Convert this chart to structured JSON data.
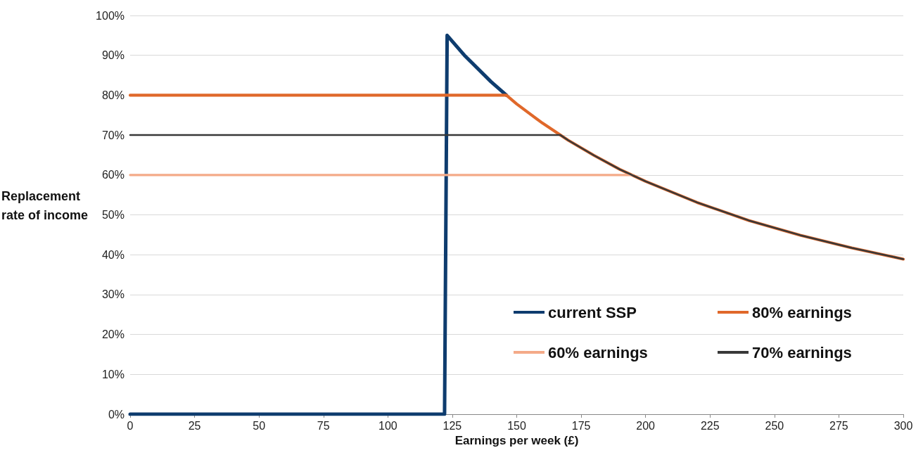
{
  "chart_data": {
    "type": "line",
    "xlabel": "Earnings per week (£)",
    "ylabel": "Replacement rate of income",
    "xlim": [
      0,
      300
    ],
    "xticks": [
      0,
      25,
      50,
      75,
      100,
      125,
      150,
      175,
      200,
      225,
      250,
      275,
      300
    ],
    "ylim": [
      0,
      100
    ],
    "yticks": [
      {
        "value": 0,
        "label": "0%"
      },
      {
        "value": 10,
        "label": "10%"
      },
      {
        "value": 20,
        "label": "20%"
      },
      {
        "value": 30,
        "label": "30%"
      },
      {
        "value": 40,
        "label": "40%"
      },
      {
        "value": 50,
        "label": "50%"
      },
      {
        "value": 60,
        "label": "60%"
      },
      {
        "value": 70,
        "label": "70%"
      },
      {
        "value": 80,
        "label": "80%"
      },
      {
        "value": 90,
        "label": "90%"
      },
      {
        "value": 100,
        "label": "100%"
      }
    ],
    "grid": "y",
    "legend": "bottom right",
    "marker": "none",
    "line_style": "solid",
    "series": [
      {
        "name": "current SSP",
        "color": "#0e3c6e",
        "x": [
          0,
          122,
          123,
          130,
          140,
          146
        ],
        "values": [
          0,
          0,
          95,
          89.8,
          83.4,
          80
        ]
      },
      {
        "name": "80% earnings",
        "color": "#e0682a",
        "x": [
          0,
          146,
          150,
          160,
          170,
          180,
          190,
          200,
          220,
          240,
          260,
          280,
          300
        ],
        "values": [
          80,
          80,
          77.8,
          73,
          68.7,
          64.9,
          61.4,
          58.4,
          53.1,
          48.6,
          44.9,
          41.7,
          38.9
        ]
      },
      {
        "name": "60% earnings",
        "color": "#f4aa88",
        "x": [
          0,
          195
        ],
        "values": [
          60,
          60
        ]
      },
      {
        "name": "70% earnings",
        "color": "#383838",
        "x": [
          0,
          167,
          170,
          180,
          190,
          200,
          220,
          240,
          260,
          280,
          300
        ],
        "values": [
          70,
          70,
          68.7,
          64.9,
          61.4,
          58.4,
          53.1,
          48.6,
          44.9,
          41.7,
          38.9
        ]
      }
    ]
  }
}
